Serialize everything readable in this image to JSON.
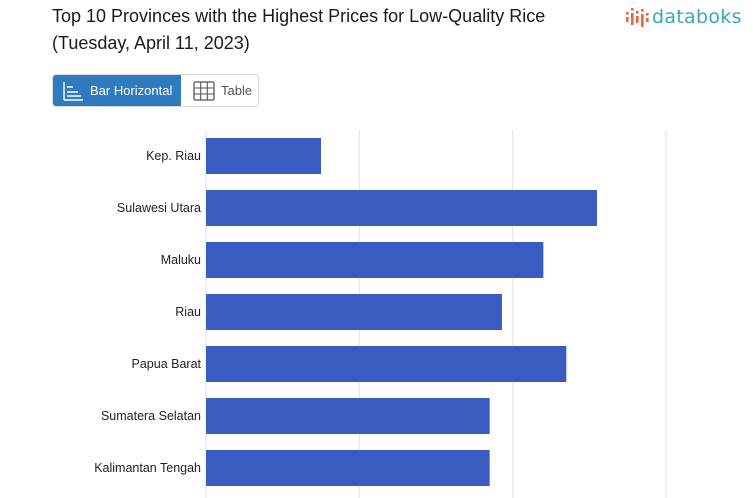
{
  "title_line1": "Top 10 Provinces with the Highest Prices for Low-Quality Rice",
  "title_line2": "(Tuesday, April 11, 2023)",
  "logo": {
    "text": "databoks",
    "icon": "databoks-bars-icon",
    "color": "#3aa8b5"
  },
  "toggle": {
    "bar_label": "Bar Horizontal",
    "bar_icon": "bar-horizontal-icon",
    "table_label": "Table",
    "table_icon": "table-grid-icon",
    "active": "Bar Horizontal"
  },
  "colors": {
    "bar": "#3a5bbf",
    "grid": "#e3e3e3",
    "active_button": "#2f7bc0"
  },
  "chart_data": {
    "type": "bar",
    "orientation": "horizontal",
    "categories": [
      "Kep. Riau",
      "Sulawesi Utara",
      "Maluku",
      "Riau",
      "Papua Barat",
      "Sumatera Selatan",
      "Kalimantan Tengah"
    ],
    "values": [
      12700,
      14500,
      14150,
      13880,
      14300,
      13800,
      13800
    ],
    "xlim": [
      11950,
      14950
    ],
    "gridlines": [
      11950,
      12950,
      13950,
      14950
    ],
    "grid": true,
    "legend": "none"
  }
}
